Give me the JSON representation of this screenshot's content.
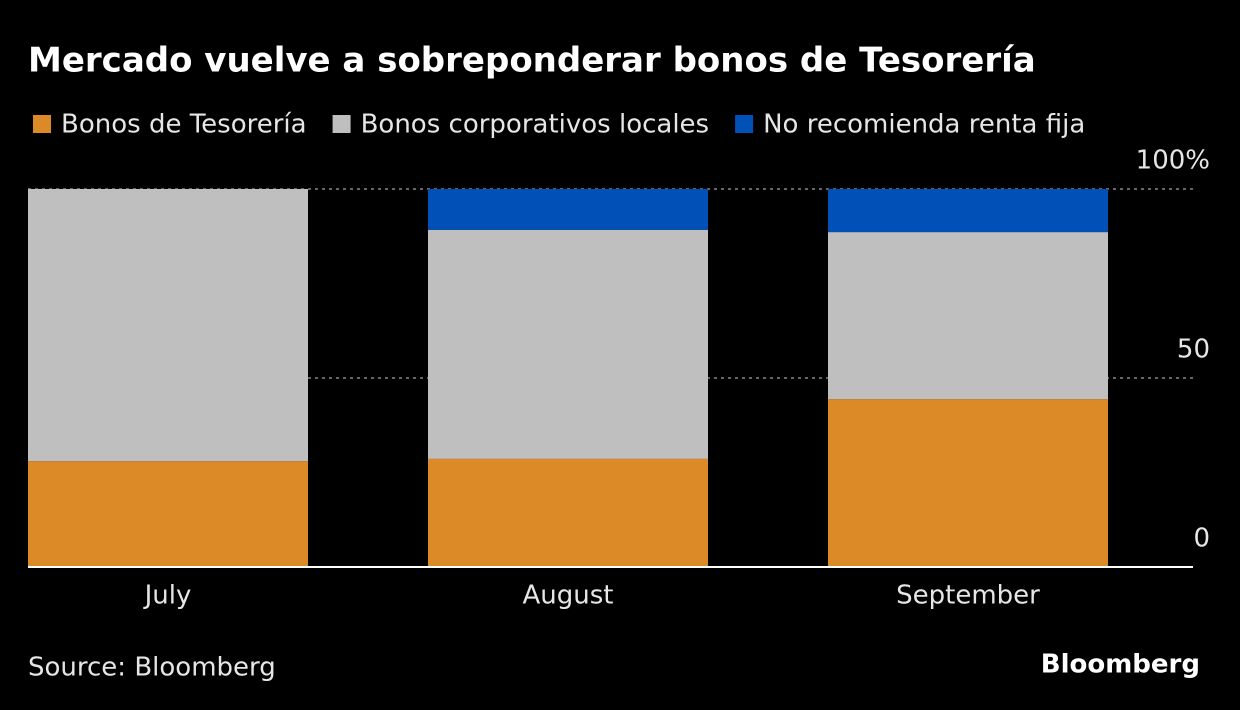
{
  "chart_data": {
    "type": "stacked-bar",
    "title": "Mercado vuelve a sobreponderar bonos de Tesorería",
    "categories": [
      "July",
      "August",
      "September"
    ],
    "series": [
      {
        "name": "Bonos de Tesorería",
        "color": "#dc8a28",
        "values": [
          28.0,
          28.6,
          44.4
        ]
      },
      {
        "name": "Bonos corporativos locales",
        "color": "#bfbfbf",
        "values": [
          72.0,
          60.6,
          44.2
        ]
      },
      {
        "name": "No recomienda renta fija",
        "color": "#0050b8",
        "values": [
          0,
          10.8,
          11.4
        ]
      }
    ],
    "ylim": [
      0,
      100
    ],
    "yticks": [
      0,
      50,
      {
        "value": 100,
        "label": "100%"
      }
    ],
    "grid": true,
    "source": "Source: Bloomberg",
    "brand": "Bloomberg"
  }
}
